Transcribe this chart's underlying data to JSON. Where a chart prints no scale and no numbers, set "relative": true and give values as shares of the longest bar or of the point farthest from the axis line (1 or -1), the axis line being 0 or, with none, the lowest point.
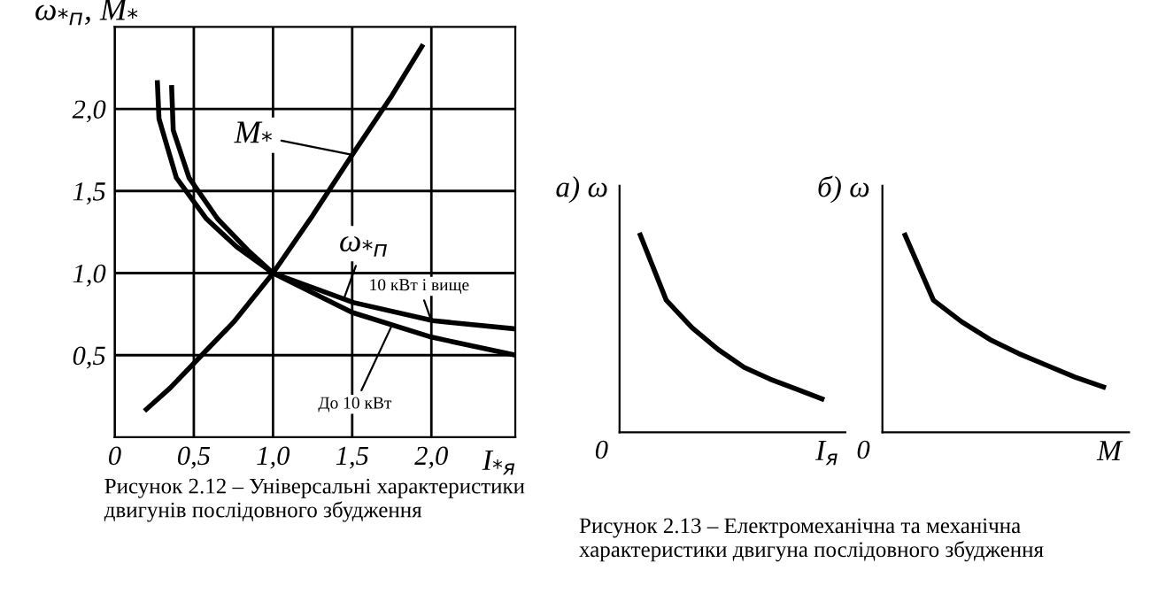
{
  "chart_data": [
    {
      "type": "line",
      "ylabel": "ω$_{*п}$, M$_{*}$",
      "xlabel": "I$_{*я}$",
      "xlim": [
        0,
        2.53
      ],
      "ylim": [
        0,
        2.5
      ],
      "xticks": [
        {
          "value": 0,
          "label": "0"
        },
        {
          "value": 0.5,
          "label": "0,5"
        },
        {
          "value": 1.0,
          "label": "1,0"
        },
        {
          "value": 1.5,
          "label": "1,5"
        },
        {
          "value": 2.0,
          "label": "2,0"
        }
      ],
      "yticks": [
        {
          "value": 0.5,
          "label": "0,5"
        },
        {
          "value": 1.0,
          "label": "1,0"
        },
        {
          "value": 1.5,
          "label": "1,5"
        },
        {
          "value": 2.0,
          "label": "2,0"
        }
      ],
      "grid": true,
      "color": "#000000",
      "series": [
        {
          "x": [
            0.2,
            0.35,
            0.5,
            0.75,
            1.0,
            1.25,
            1.5,
            1.75,
            1.94
          ],
          "values": [
            0.17,
            0.3,
            0.45,
            0.7,
            1.0,
            1.35,
            1.72,
            2.08,
            2.38
          ]
        },
        {
          "x": [
            0.27,
            0.28,
            0.39,
            0.58,
            0.77,
            1.0,
            1.51,
            2.01,
            2.53
          ],
          "values": [
            2.16,
            1.94,
            1.58,
            1.33,
            1.16,
            1.0,
            0.82,
            0.71,
            0.66
          ]
        },
        {
          "x": [
            0.36,
            0.37,
            0.47,
            0.65,
            0.84,
            1.0,
            1.5,
            2.0,
            2.53
          ],
          "values": [
            2.13,
            1.87,
            1.58,
            1.33,
            1.14,
            1.0,
            0.76,
            0.61,
            0.5
          ]
        }
      ],
      "annotations": [
        {
          "text": "M$_{*}$",
          "x": 1.5,
          "y": 1.72
        },
        {
          "text": "ω$_{*п}$",
          "x": 1.45,
          "y": 0.85
        },
        {
          "text": "10 кВт і вище",
          "x": 2.0,
          "y": 0.71
        },
        {
          "text": "До 10 кВт",
          "x": 1.75,
          "y": 0.68
        },
        "Рисунок 2.12 – Універсальні характеристики двигунів послідовного збудження"
      ]
    },
    {
      "type": "line",
      "relative": true,
      "ylabel": "а) ω",
      "xlabel": "I$_{я}$",
      "color": "#000000",
      "categories": [
        null,
        null,
        null,
        null,
        null,
        null,
        null,
        null
      ],
      "values": [
        1,
        0.67,
        0.53,
        0.42,
        0.33,
        0.27,
        0.22,
        0.17
      ],
      "annotations": [
        "0",
        "Рисунок 2.13 – Електромеханічна та механічна характеристики двигуна послідовного збудження"
      ]
    },
    {
      "type": "line",
      "relative": true,
      "ylabel": "б) ω",
      "xlabel": "M",
      "color": "#000000",
      "categories": [
        null,
        null,
        null,
        null,
        null,
        null,
        null,
        null
      ],
      "values": [
        1,
        0.67,
        0.56,
        0.47,
        0.4,
        0.34,
        0.28,
        0.23
      ],
      "annotations": [
        "0"
      ]
    }
  ]
}
